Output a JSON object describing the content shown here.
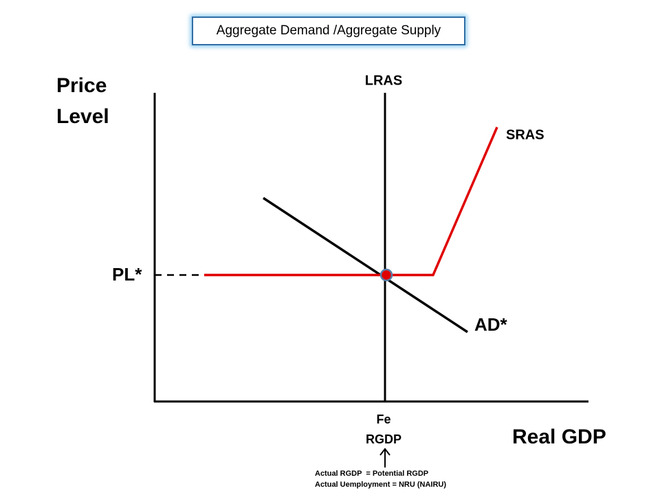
{
  "header": {
    "title": "Aggregate Demand /Aggregate Supply"
  },
  "axes": {
    "y_label": [
      "Price",
      "Level"
    ],
    "x_label": "Real GDP"
  },
  "curves": {
    "lras": "LRAS",
    "sras": "SRAS",
    "ad": "AD*"
  },
  "equilibrium": {
    "price": "PL*",
    "output": [
      "Fe",
      "RGDP"
    ]
  },
  "notes": [
    "Actual RGDP  = Potential RGDP",
    "Actual Uemployment = NRU (NAIRU)"
  ]
}
